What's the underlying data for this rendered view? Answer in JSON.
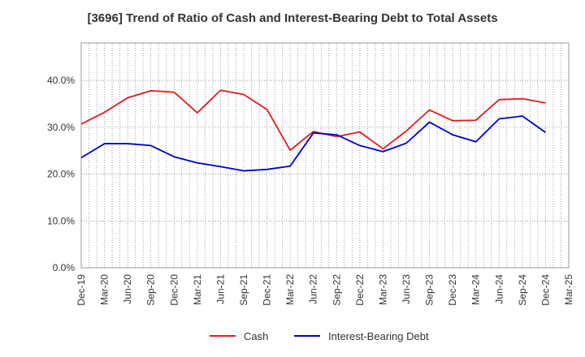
{
  "chart_data": {
    "type": "line",
    "title": "[3696]  Trend of Ratio of Cash and Interest-Bearing Debt to Total Assets",
    "xlabel": "",
    "ylabel": "",
    "x_ticks": [
      "Dec-19",
      "Mar-20",
      "Jun-20",
      "Sep-20",
      "Dec-20",
      "Mar-21",
      "Jun-21",
      "Sep-21",
      "Dec-21",
      "Mar-22",
      "Jun-22",
      "Sep-22",
      "Dec-22",
      "Mar-23",
      "Jun-23",
      "Sep-23",
      "Dec-23",
      "Mar-24",
      "Jun-24",
      "Sep-24",
      "Dec-24",
      "Mar-25"
    ],
    "y_ticks": [
      "0.0%",
      "10.0%",
      "20.0%",
      "30.0%",
      "40.0%"
    ],
    "y_tick_values": [
      0,
      10,
      20,
      30,
      40
    ],
    "ylim": [
      0,
      48
    ],
    "grid": true,
    "legend_position": "bottom",
    "series": [
      {
        "name": "Cash",
        "color": "#e41a1c",
        "x": [
          "Dec-19",
          "Mar-20",
          "Jun-20",
          "Sep-20",
          "Dec-20",
          "Mar-21",
          "Jun-21",
          "Sep-21",
          "Dec-21",
          "Mar-22",
          "Jun-22",
          "Sep-22",
          "Dec-22",
          "Mar-23",
          "Jun-23",
          "Sep-23",
          "Dec-23",
          "Mar-24",
          "Jun-24",
          "Sep-24",
          "Dec-24"
        ],
        "values": [
          30.7,
          33.2,
          36.3,
          37.8,
          37.5,
          33.1,
          37.9,
          37.0,
          33.8,
          25.1,
          29.1,
          28.0,
          29.0,
          25.4,
          29.2,
          33.7,
          31.4,
          31.5,
          35.9,
          36.1,
          35.2
        ]
      },
      {
        "name": "Interest-Bearing Debt",
        "color": "#0000cc",
        "x": [
          "Dec-19",
          "Mar-20",
          "Jun-20",
          "Sep-20",
          "Dec-20",
          "Mar-21",
          "Jun-21",
          "Sep-21",
          "Dec-21",
          "Mar-22",
          "Jun-22",
          "Sep-22",
          "Dec-22",
          "Mar-23",
          "Jun-23",
          "Sep-23",
          "Dec-23",
          "Mar-24",
          "Jun-24",
          "Sep-24",
          "Dec-24"
        ],
        "values": [
          23.5,
          26.5,
          26.5,
          26.1,
          23.7,
          22.4,
          21.6,
          20.7,
          21.0,
          21.7,
          28.8,
          28.4,
          26.1,
          24.8,
          26.6,
          31.1,
          28.4,
          26.9,
          31.8,
          32.4,
          28.9
        ]
      }
    ]
  }
}
